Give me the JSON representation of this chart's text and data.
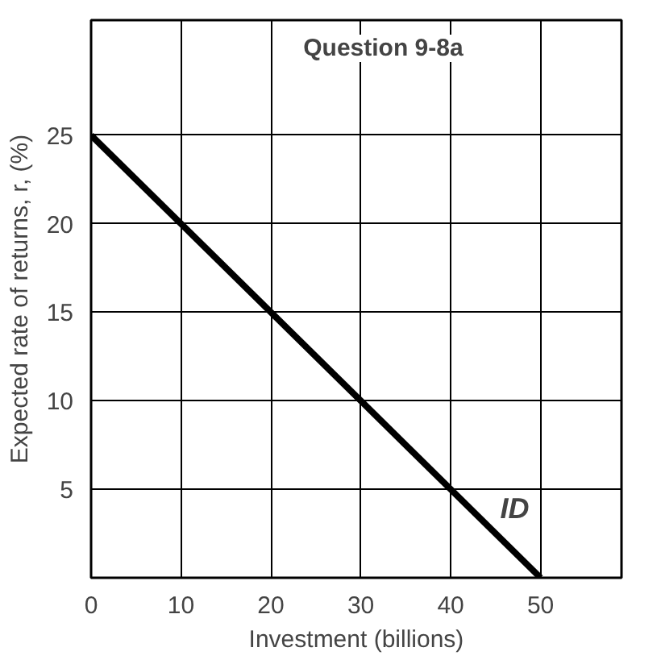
{
  "chart_data": {
    "type": "line",
    "title": "Question 9-8a",
    "xlabel": "Investment (billions)",
    "ylabel": "Expected rate of returns, r, (%)",
    "x": [
      0,
      50
    ],
    "series": [
      {
        "color": "#000000",
        "values": [
          25,
          0
        ]
      }
    ],
    "xlim": [
      0,
      59
    ],
    "ylim": [
      0,
      31.5
    ],
    "xticks": [
      0,
      10,
      20,
      30,
      40,
      50
    ],
    "yticks": [
      5,
      10,
      15,
      20,
      25
    ],
    "grid": true,
    "marker": "none",
    "line_style": "solid",
    "annotations": [
      {
        "text": "ID",
        "x": 45.5,
        "y": 3
      }
    ]
  }
}
